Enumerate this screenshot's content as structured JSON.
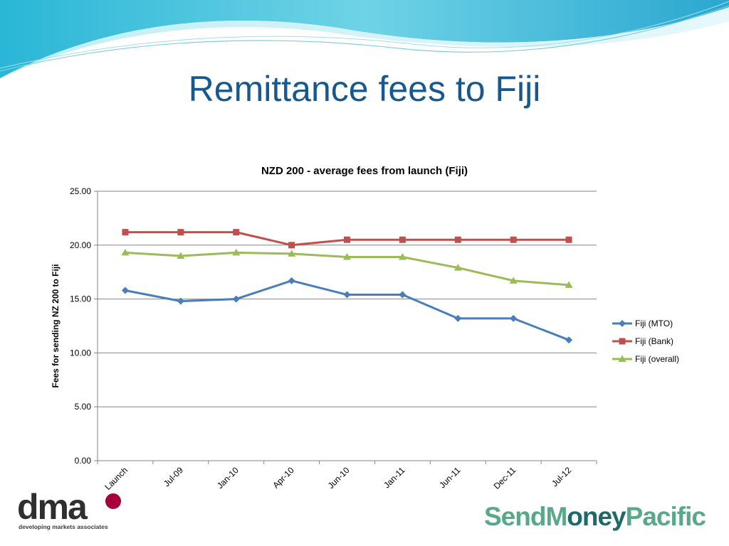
{
  "slide": {
    "title": "Remittance fees to Fiji"
  },
  "colors": {
    "title": "#17598f",
    "wave_dark": "#2ab6d6",
    "wave_light": "#9fe4ef"
  },
  "logos": {
    "dma_letters": "dma",
    "dma_tagline": "developing markets associates",
    "smp_send": "SendM",
    "smp_money": "oney",
    "smp_pacific": "Pacific"
  },
  "chart_data": {
    "type": "line",
    "title": "NZD 200 - average fees from launch (Fiji)",
    "xlabel": "",
    "ylabel": "Fees for sending NZ 200 to Fiji",
    "categories": [
      "Launch",
      "Jul-09",
      "Jan-10",
      "Apr-10",
      "Jun-10",
      "Jan-11",
      "Jun-11",
      "Dec-11",
      "Jul-12"
    ],
    "ylim": [
      0,
      25
    ],
    "yticks": [
      0,
      5,
      10,
      15,
      20,
      25
    ],
    "ytick_labels": [
      "0.00",
      "5.00",
      "10.00",
      "15.00",
      "20.00",
      "25.00"
    ],
    "grid": true,
    "legend_position": "right",
    "series": [
      {
        "name": "Fiji (MTO)",
        "color": "#4a7ebb",
        "marker": "diamond",
        "values": [
          15.8,
          14.8,
          15.0,
          16.7,
          15.4,
          15.4,
          13.2,
          13.2,
          11.2
        ]
      },
      {
        "name": "Fiji (Bank)",
        "color": "#c0504d",
        "marker": "square",
        "values": [
          21.2,
          21.2,
          21.2,
          20.0,
          20.5,
          20.5,
          20.5,
          20.5,
          20.5
        ]
      },
      {
        "name": "Fiji (overall)",
        "color": "#9bbb59",
        "marker": "triangle",
        "values": [
          19.3,
          19.0,
          19.3,
          19.2,
          18.9,
          18.9,
          17.9,
          16.7,
          16.3
        ]
      }
    ]
  }
}
